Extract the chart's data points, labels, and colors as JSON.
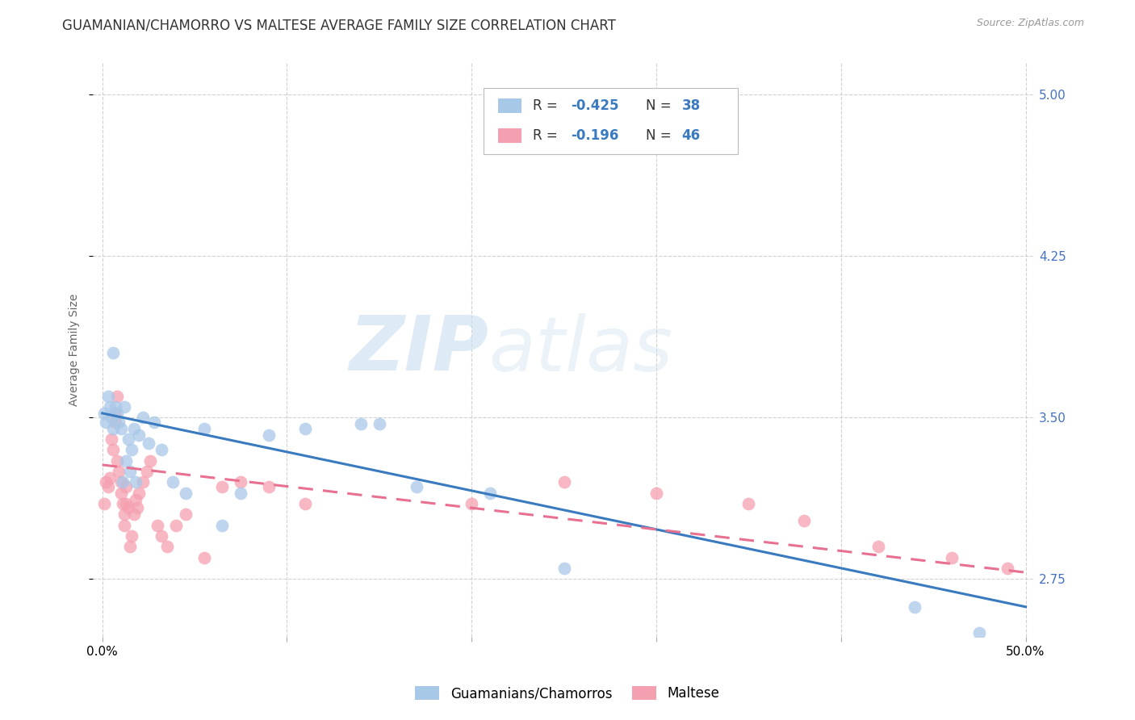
{
  "title": "GUAMANIAN/CHAMORRO VS MALTESE AVERAGE FAMILY SIZE CORRELATION CHART",
  "source": "Source: ZipAtlas.com",
  "ylabel": "Average Family Size",
  "yticks": [
    2.75,
    3.5,
    4.25,
    5.0
  ],
  "xlim": [
    -0.005,
    0.505
  ],
  "ylim": [
    2.48,
    5.15
  ],
  "legend_labels": [
    "Guamanians/Chamorros",
    "Maltese"
  ],
  "blue_color": "#a8c8e8",
  "pink_color": "#f5a0b0",
  "blue_line_color": "#3a7abf",
  "pink_line_color": "#e87090",
  "watermark_zip": "ZIP",
  "watermark_atlas": "atlas",
  "background_color": "#ffffff",
  "grid_color": "#cccccc",
  "title_fontsize": 12,
  "axis_label_fontsize": 10,
  "tick_fontsize": 11,
  "right_tick_color": "#4472c4",
  "blue_scatter_x": [
    0.001,
    0.002,
    0.003,
    0.004,
    0.005,
    0.006,
    0.006,
    0.007,
    0.008,
    0.009,
    0.01,
    0.011,
    0.012,
    0.013,
    0.014,
    0.015,
    0.016,
    0.017,
    0.018,
    0.02,
    0.022,
    0.025,
    0.028,
    0.032,
    0.038,
    0.045,
    0.055,
    0.065,
    0.075,
    0.09,
    0.11,
    0.14,
    0.17,
    0.21,
    0.25,
    0.15,
    0.44,
    0.475
  ],
  "blue_scatter_y": [
    3.52,
    3.48,
    3.6,
    3.55,
    3.5,
    3.45,
    3.8,
    3.55,
    3.52,
    3.48,
    3.45,
    3.2,
    3.55,
    3.3,
    3.4,
    3.25,
    3.35,
    3.45,
    3.2,
    3.42,
    3.5,
    3.38,
    3.48,
    3.35,
    3.2,
    3.15,
    3.45,
    3.0,
    3.15,
    3.42,
    3.45,
    3.47,
    3.18,
    3.15,
    2.8,
    3.47,
    2.62,
    2.5
  ],
  "pink_scatter_x": [
    0.001,
    0.002,
    0.003,
    0.004,
    0.005,
    0.006,
    0.007,
    0.007,
    0.008,
    0.008,
    0.009,
    0.01,
    0.01,
    0.011,
    0.012,
    0.012,
    0.013,
    0.013,
    0.014,
    0.015,
    0.016,
    0.017,
    0.018,
    0.019,
    0.02,
    0.022,
    0.024,
    0.026,
    0.03,
    0.032,
    0.035,
    0.04,
    0.045,
    0.055,
    0.065,
    0.075,
    0.09,
    0.11,
    0.2,
    0.25,
    0.3,
    0.35,
    0.38,
    0.42,
    0.46,
    0.49
  ],
  "pink_scatter_y": [
    3.1,
    3.2,
    3.18,
    3.22,
    3.4,
    3.35,
    3.48,
    3.52,
    3.6,
    3.3,
    3.25,
    3.15,
    3.2,
    3.1,
    3.05,
    3.0,
    3.1,
    3.18,
    3.08,
    2.9,
    2.95,
    3.05,
    3.12,
    3.08,
    3.15,
    3.2,
    3.25,
    3.3,
    3.0,
    2.95,
    2.9,
    3.0,
    3.05,
    2.85,
    3.18,
    3.2,
    3.18,
    3.1,
    3.1,
    3.2,
    3.15,
    3.1,
    3.02,
    2.9,
    2.85,
    2.8
  ],
  "blue_line_x": [
    0.0,
    0.5
  ],
  "blue_line_y": [
    3.52,
    2.62
  ],
  "pink_line_x": [
    0.0,
    0.5
  ],
  "pink_line_y": [
    3.28,
    2.78
  ]
}
